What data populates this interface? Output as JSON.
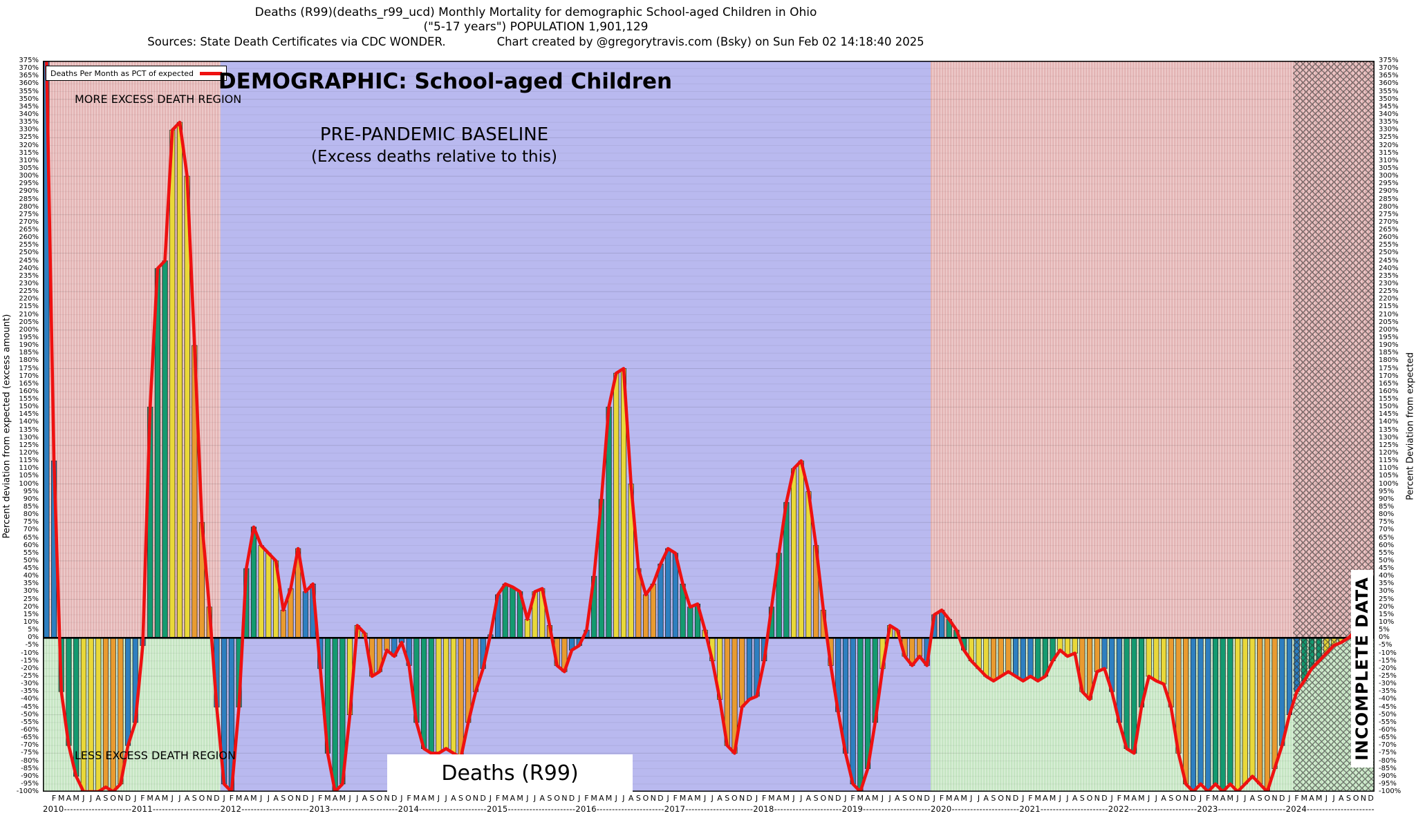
{
  "header": {
    "title_line1": "Deaths (R99)(deaths_r99_ucd) Monthly Mortality for demographic School-aged Children in Ohio",
    "title_line2": "(\"5-17 years\") POPULATION 1,901,129",
    "sources": "Sources: State Death Certificates via CDC WONDER.",
    "credit": "Chart created by @gregorytravis.com (Bsky) on Sun Feb 02 14:18:40 2025"
  },
  "chart": {
    "legend_label": "Deaths Per Month as PCT of expected",
    "more_region_label": "MORE EXCESS DEATH REGION",
    "less_region_label": "LESS EXCESS DEATH REGION",
    "demographic_title": "DEMOGRAPHIC: School-aged Children",
    "baseline_title": "PRE-PANDEMIC BASELINE",
    "baseline_subtitle": "(Excess deaths relative to this)",
    "bottom_label": "Deaths (R99)",
    "incomplete_label": "INCOMPLETE DATA",
    "left_axis_title": "Percent deviation from expected (excess amount)",
    "right_axis_title": "Percent Deviation from expected"
  },
  "chart_data": {
    "type": "bar",
    "title": "DEMOGRAPHIC: School-aged Children",
    "subtitle": "PRE-PANDEMIC BASELINE (Excess deaths relative to this)",
    "series_name": "Deaths Per Month as PCT of expected",
    "xlabel": "",
    "ylabel": "Percent deviation from expected (excess amount)",
    "unit": "%",
    "ylim": [
      -100,
      375
    ],
    "ytick_step": 5,
    "ytick_suffix": "%",
    "legend_position": "top-left",
    "grid": true,
    "start": "2010-01",
    "years": [
      "2010",
      "2011",
      "2012",
      "2013",
      "2014",
      "2015",
      "2016",
      "2017",
      "2018",
      "2019",
      "2020",
      "2021",
      "2022",
      "2023",
      "2024"
    ],
    "month_letters": [
      "J",
      "F",
      "M",
      "A",
      "M",
      "J",
      "J",
      "A",
      "S",
      "O",
      "N",
      "D"
    ],
    "values": [
      375,
      115,
      -35,
      -70,
      -90,
      -100,
      -100,
      -100,
      -97,
      -100,
      -95,
      -70,
      -55,
      -5,
      150,
      240,
      245,
      330,
      335,
      300,
      190,
      75,
      20,
      -45,
      -95,
      -100,
      -45,
      45,
      72,
      60,
      55,
      50,
      18,
      32,
      58,
      30,
      35,
      -20,
      -75,
      -100,
      -95,
      -50,
      8,
      3,
      -25,
      -22,
      -8,
      -12,
      -3,
      -18,
      -55,
      -72,
      -75,
      -75,
      -72,
      -75,
      -78,
      -55,
      -35,
      -20,
      2,
      28,
      35,
      33,
      30,
      12,
      30,
      32,
      8,
      -18,
      -22,
      -8,
      -5,
      5,
      40,
      90,
      150,
      172,
      175,
      100,
      45,
      28,
      35,
      48,
      58,
      55,
      35,
      20,
      22,
      5,
      -15,
      -40,
      -70,
      -75,
      -45,
      -40,
      -38,
      -15,
      20,
      55,
      88,
      110,
      115,
      95,
      60,
      18,
      -18,
      -48,
      -75,
      -95,
      -100,
      -85,
      -55,
      -20,
      8,
      5,
      -12,
      -18,
      -12,
      -18,
      15,
      18,
      12,
      5,
      -8,
      -15,
      -20,
      -25,
      -28,
      -25,
      -22,
      -25,
      -28,
      -25,
      -28,
      -25,
      -15,
      -8,
      -12,
      -10,
      -35,
      -40,
      -22,
      -20,
      -35,
      -55,
      -72,
      -75,
      -45,
      -25,
      -28,
      -30,
      -45,
      -75,
      -95,
      -100,
      -95,
      -100,
      -95,
      -100,
      -95,
      -100,
      -95,
      -90,
      -95,
      -100,
      -85,
      -70,
      -50,
      -35,
      -28,
      -20,
      -15,
      -10,
      -5,
      -3,
      0,
      5,
      18,
      40
    ],
    "regions": [
      {
        "name": "excess-region-2010-2011",
        "start_month": 0,
        "end_month": 24,
        "style": "excess"
      },
      {
        "name": "pre-pandemic-baseline",
        "start_month": 24,
        "end_month": 120,
        "style": "baseline"
      },
      {
        "name": "excess-region-2020-2024",
        "start_month": 120,
        "end_month": 180,
        "style": "excess"
      },
      {
        "name": "incomplete-data",
        "start_month": 169,
        "end_month": 180,
        "style": "incomplete"
      }
    ],
    "colors": {
      "line": "#ee1111",
      "seasons": {
        "winter": "#2e7fc0",
        "spring": "#149a70",
        "summer": "#e9d83a",
        "autumn": "#e99b30"
      },
      "excess_above_bg": "#e3b4b4",
      "excess_above_stripe": "#efcfcf",
      "excess_below_bg": "#c5e5c2",
      "excess_below_stripe": "#dcf0da",
      "baseline_bg": "#b9b9ef",
      "bar_outline": "#1c1c1c",
      "hatch": "#2b2b2b"
    }
  }
}
